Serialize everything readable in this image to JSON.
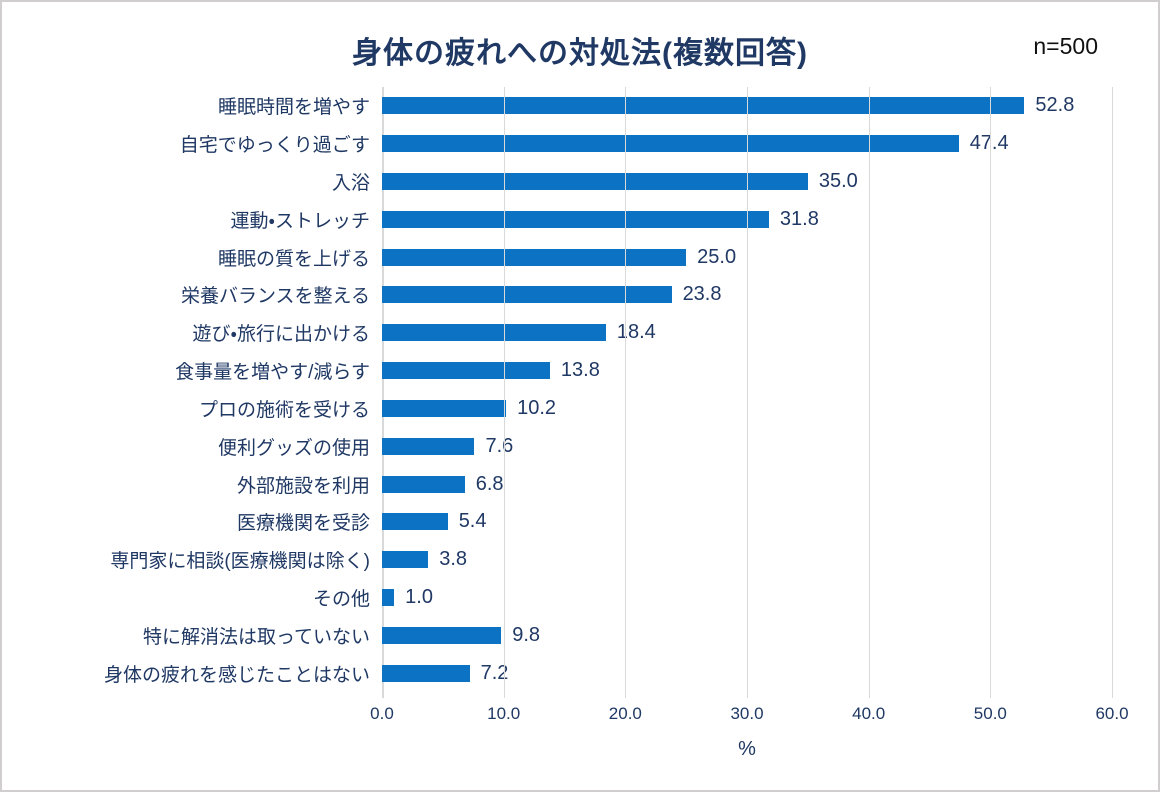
{
  "title": "身体の疲れへの対処法(複数回答)",
  "sample_size_label": "n=500",
  "colors": {
    "bar": "#0c72c3",
    "text_navy": "#1f3864",
    "gridline": "#d9d9d9",
    "frame_border": "#d0cece",
    "sample_size_text": "#111111"
  },
  "chart_data": {
    "type": "bar",
    "orientation": "horizontal",
    "title": "身体の疲れへの対処法(複数回答)",
    "annotation": "n=500",
    "categories": [
      "睡眠時間を増やす",
      "自宅でゆっくり過ごす",
      "入浴",
      "運動・ストレッチ",
      "睡眠の質を上げる",
      "栄養バランスを整える",
      "遊び・旅行に出かける",
      "食事量を増やす/減らす",
      "プロの施術を受ける",
      "便利グッズの使用",
      "外部施設を利用",
      "医療機関を受診",
      "専門家に相談(医療機関は除く)",
      "その他",
      "特に解消法は取っていない",
      "身体の疲れを感じたことはない"
    ],
    "values": [
      52.8,
      47.4,
      35.0,
      31.8,
      25.0,
      23.8,
      18.4,
      13.8,
      10.2,
      7.6,
      6.8,
      5.4,
      3.8,
      1.0,
      9.8,
      7.2
    ],
    "value_labels": [
      "52.8",
      "47.4",
      "35.0",
      "31.8",
      "25.0",
      "23.8",
      "18.4",
      "13.8",
      "10.2",
      "7.6",
      "6.8",
      "5.4",
      "3.8",
      "1.0",
      "9.8",
      "7.2"
    ],
    "xlabel": "%",
    "xlim": [
      0,
      60
    ],
    "xticks": [
      0,
      10,
      20,
      30,
      40,
      50,
      60
    ],
    "xtick_labels": [
      "0.0",
      "10.0",
      "20.0",
      "30.0",
      "40.0",
      "50.0",
      "60.0"
    ],
    "grid": true,
    "legend": false
  }
}
